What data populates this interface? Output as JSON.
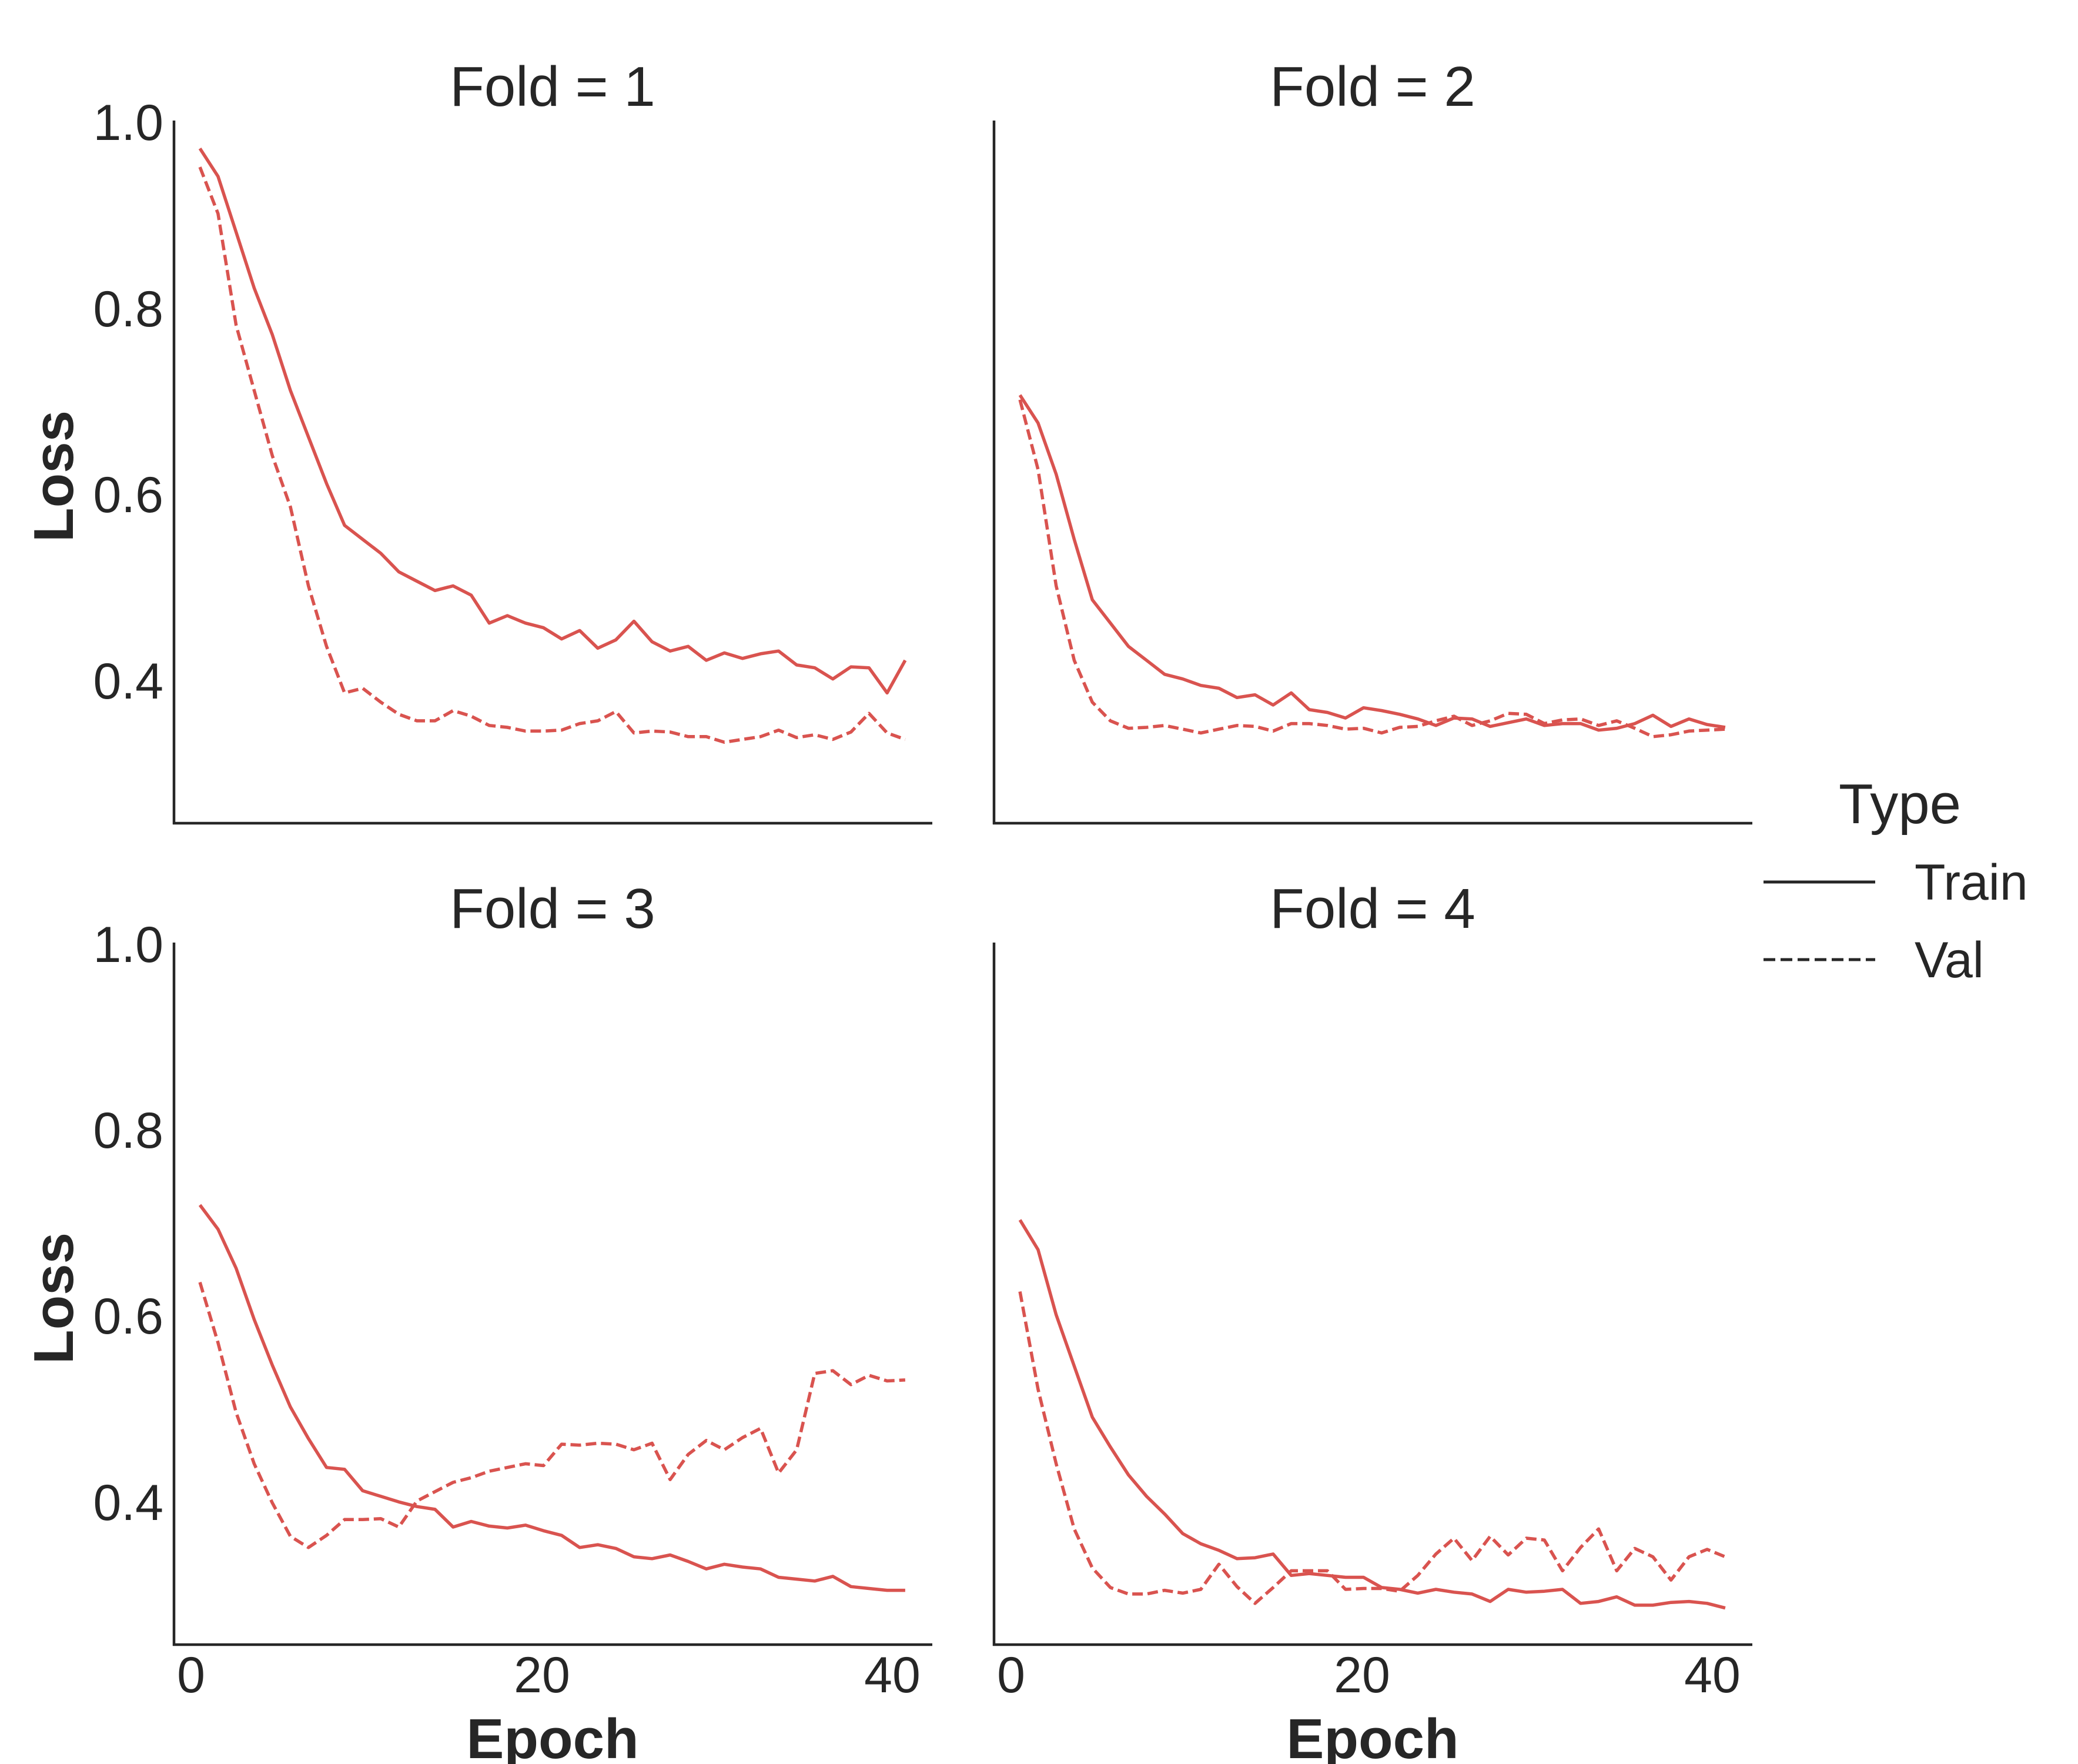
{
  "chart_data": {
    "type": "line",
    "facet": "Fold",
    "xlabel": "Epoch",
    "ylabel": "Loss",
    "xlim": [
      -0.5,
      41.5
    ],
    "ylim": [
      0.245,
      1.0
    ],
    "xticks": [
      0,
      20,
      40
    ],
    "yticks": [
      0.4,
      0.6,
      0.8,
      1.0
    ],
    "xtick_labels": [
      "0",
      "20",
      "40"
    ],
    "ytick_labels": [
      "0.4",
      "0.6",
      "0.8",
      "1.0"
    ],
    "grid": false,
    "line_color": "#d9534f",
    "legend": {
      "title": "Type",
      "position": "right",
      "entries": [
        {
          "label": "Train",
          "dash": "solid"
        },
        {
          "label": "Val",
          "dash": "dashed"
        }
      ]
    },
    "panels": [
      {
        "title": "Fold = 1",
        "x": [
          1,
          2,
          3,
          4,
          5,
          6,
          7,
          8,
          9,
          10,
          11,
          12,
          13,
          14,
          15,
          16,
          17,
          18,
          19,
          20,
          21,
          22,
          23,
          24,
          25,
          26,
          27,
          28,
          29,
          30,
          31,
          32,
          33,
          34,
          35,
          36,
          37,
          38,
          39,
          40
        ],
        "series": [
          {
            "name": "Train",
            "dash": "solid",
            "values": [
              0.97,
              0.94,
              0.88,
              0.82,
              0.77,
              0.71,
              0.66,
              0.61,
              0.565,
              0.55,
              0.535,
              0.515,
              0.505,
              0.495,
              0.5,
              0.49,
              0.46,
              0.468,
              0.46,
              0.455,
              0.443,
              0.452,
              0.433,
              0.442,
              0.462,
              0.44,
              0.43,
              0.435,
              0.42,
              0.428,
              0.422,
              0.427,
              0.43,
              0.415,
              0.412,
              0.4,
              0.413,
              0.412,
              0.385,
              0.42
            ]
          },
          {
            "name": "Val",
            "dash": "dashed",
            "values": [
              0.95,
              0.9,
              0.78,
              0.71,
              0.64,
              0.585,
              0.5,
              0.435,
              0.385,
              0.39,
              0.375,
              0.362,
              0.355,
              0.355,
              0.366,
              0.36,
              0.35,
              0.348,
              0.344,
              0.344,
              0.345,
              0.352,
              0.355,
              0.365,
              0.342,
              0.344,
              0.343,
              0.338,
              0.338,
              0.332,
              0.335,
              0.338,
              0.345,
              0.337,
              0.34,
              0.335,
              0.343,
              0.363,
              0.342,
              0.335
            ]
          }
        ]
      },
      {
        "title": "Fold = 2",
        "x": [
          1,
          2,
          3,
          4,
          5,
          6,
          7,
          8,
          9,
          10,
          11,
          12,
          13,
          14,
          15,
          16,
          17,
          18,
          19,
          20,
          21,
          22,
          23,
          24,
          25,
          26,
          27,
          28,
          29,
          30,
          31,
          32,
          33,
          34,
          35,
          36,
          37,
          38,
          39,
          40
        ],
        "series": [
          {
            "name": "Train",
            "dash": "solid",
            "values": [
              0.705,
              0.675,
              0.62,
              0.55,
              0.485,
              0.46,
              0.435,
              0.42,
              0.405,
              0.4,
              0.393,
              0.39,
              0.38,
              0.383,
              0.372,
              0.385,
              0.367,
              0.364,
              0.358,
              0.369,
              0.366,
              0.362,
              0.357,
              0.35,
              0.358,
              0.357,
              0.349,
              0.353,
              0.357,
              0.35,
              0.352,
              0.352,
              0.345,
              0.347,
              0.352,
              0.361,
              0.349,
              0.357,
              0.351,
              0.348
            ]
          },
          {
            "name": "Val",
            "dash": "dashed",
            "values": [
              0.7,
              0.625,
              0.5,
              0.42,
              0.375,
              0.355,
              0.347,
              0.348,
              0.35,
              0.346,
              0.342,
              0.346,
              0.35,
              0.349,
              0.344,
              0.352,
              0.352,
              0.35,
              0.346,
              0.347,
              0.342,
              0.348,
              0.349,
              0.355,
              0.36,
              0.35,
              0.355,
              0.363,
              0.362,
              0.352,
              0.356,
              0.357,
              0.35,
              0.355,
              0.347,
              0.338,
              0.34,
              0.344,
              0.345,
              0.346
            ]
          }
        ]
      },
      {
        "title": "Fold = 3",
        "x": [
          1,
          2,
          3,
          4,
          5,
          6,
          7,
          8,
          9,
          10,
          11,
          12,
          13,
          14,
          15,
          16,
          17,
          18,
          19,
          20,
          21,
          22,
          23,
          24,
          25,
          26,
          27,
          28,
          29,
          30,
          31,
          32,
          33,
          34,
          35,
          36,
          37,
          38,
          39,
          40
        ],
        "series": [
          {
            "name": "Train",
            "dash": "solid",
            "values": [
              0.718,
              0.692,
              0.65,
              0.595,
              0.546,
              0.501,
              0.467,
              0.436,
              0.434,
              0.411,
              0.405,
              0.399,
              0.394,
              0.391,
              0.372,
              0.378,
              0.373,
              0.371,
              0.374,
              0.368,
              0.363,
              0.35,
              0.353,
              0.349,
              0.34,
              0.338,
              0.342,
              0.335,
              0.327,
              0.332,
              0.329,
              0.327,
              0.318,
              0.316,
              0.314,
              0.319,
              0.308,
              0.306,
              0.304,
              0.304
            ]
          },
          {
            "name": "Val",
            "dash": "dashed",
            "values": [
              0.635,
              0.57,
              0.495,
              0.44,
              0.398,
              0.362,
              0.35,
              0.363,
              0.38,
              0.38,
              0.381,
              0.372,
              0.4,
              0.41,
              0.42,
              0.425,
              0.432,
              0.436,
              0.44,
              0.438,
              0.461,
              0.46,
              0.462,
              0.461,
              0.455,
              0.462,
              0.423,
              0.45,
              0.465,
              0.455,
              0.468,
              0.478,
              0.43,
              0.455,
              0.537,
              0.54,
              0.525,
              0.535,
              0.529,
              0.53
            ]
          }
        ]
      },
      {
        "title": "Fold = 4",
        "x": [
          1,
          2,
          3,
          4,
          5,
          6,
          7,
          8,
          9,
          10,
          11,
          12,
          13,
          14,
          15,
          16,
          17,
          18,
          19,
          20,
          21,
          22,
          23,
          24,
          25,
          26,
          27,
          28,
          29,
          30,
          31,
          32,
          33,
          34,
          35,
          36,
          37,
          38,
          39,
          40
        ],
        "series": [
          {
            "name": "Train",
            "dash": "solid",
            "values": [
              0.702,
              0.67,
              0.6,
              0.545,
              0.49,
              0.458,
              0.428,
              0.405,
              0.386,
              0.365,
              0.354,
              0.347,
              0.338,
              0.339,
              0.343,
              0.32,
              0.322,
              0.32,
              0.318,
              0.318,
              0.307,
              0.305,
              0.301,
              0.305,
              0.302,
              0.3,
              0.292,
              0.305,
              0.302,
              0.303,
              0.305,
              0.29,
              0.292,
              0.297,
              0.288,
              0.288,
              0.291,
              0.292,
              0.29,
              0.285
            ]
          },
          {
            "name": "Val",
            "dash": "dashed",
            "values": [
              0.625,
              0.52,
              0.44,
              0.37,
              0.328,
              0.307,
              0.3,
              0.3,
              0.304,
              0.301,
              0.305,
              0.332,
              0.308,
              0.29,
              0.307,
              0.325,
              0.325,
              0.325,
              0.305,
              0.306,
              0.306,
              0.303,
              0.32,
              0.343,
              0.36,
              0.336,
              0.362,
              0.342,
              0.36,
              0.358,
              0.325,
              0.35,
              0.37,
              0.325,
              0.349,
              0.34,
              0.315,
              0.34,
              0.348,
              0.34
            ]
          }
        ]
      }
    ]
  }
}
